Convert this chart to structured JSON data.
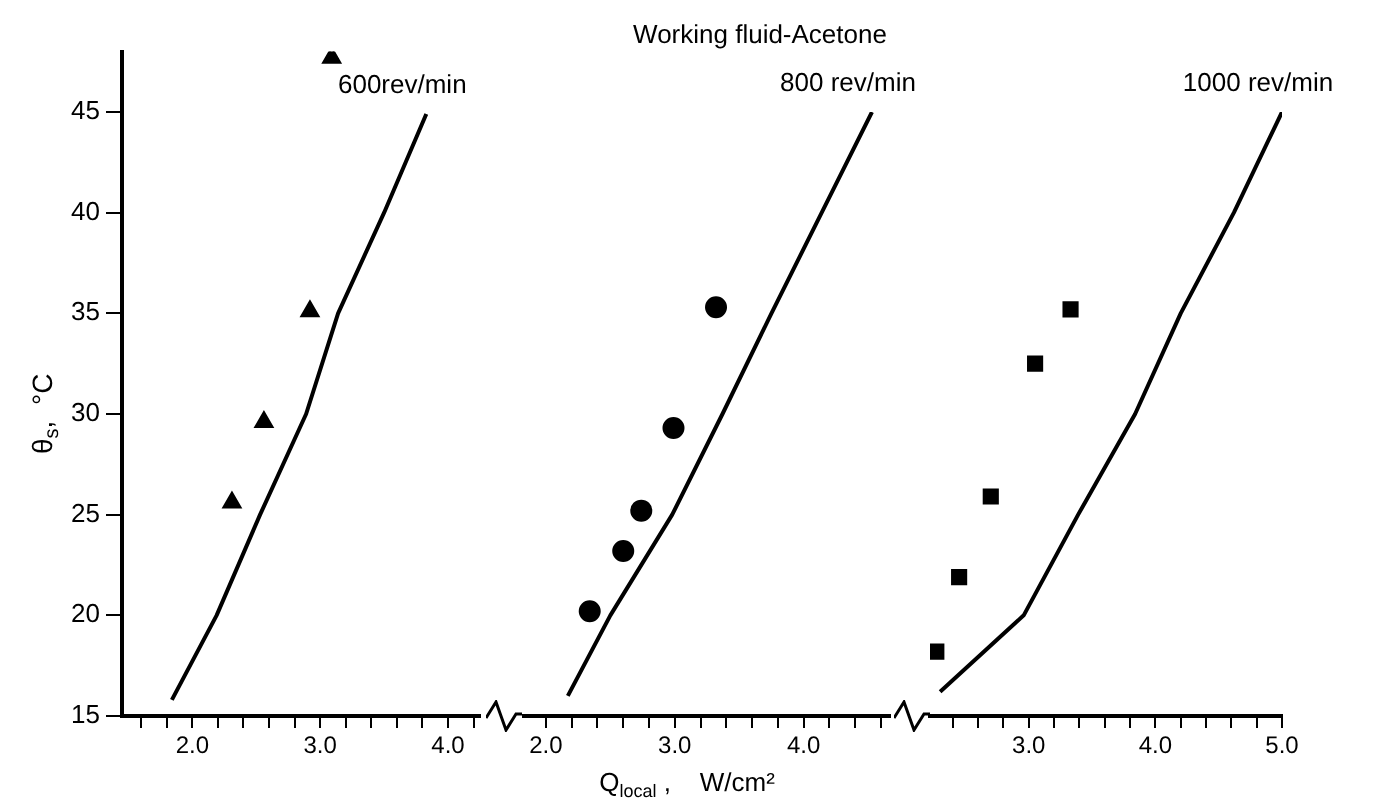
{
  "chart_data": [
    {
      "type": "scatter",
      "ylabel": "θ$_{s}$,  °C",
      "annotations": [
        {
          "text": "600rev/min",
          "x": 3.83,
          "y": 44.9
        }
      ],
      "xlim": [
        1.45,
        4.25
      ],
      "xticks": [
        {
          "value": 1.6,
          "label": null
        },
        {
          "value": 1.8,
          "label": null
        },
        {
          "value": 2,
          "label": "2.0"
        },
        {
          "value": 2.2,
          "label": null
        },
        {
          "value": 2.4,
          "label": null
        },
        {
          "value": 2.6,
          "label": null
        },
        {
          "value": 2.8,
          "label": null
        },
        {
          "value": 3,
          "label": "3.0"
        },
        {
          "value": 3.2,
          "label": null
        },
        {
          "value": 3.4,
          "label": null
        },
        {
          "value": 3.6,
          "label": null
        },
        {
          "value": 3.8,
          "label": null
        },
        {
          "value": 4,
          "label": "4.0"
        },
        {
          "value": 4.2,
          "label": null
        }
      ],
      "ylim": [
        15,
        48
      ],
      "yticks": [
        15,
        20,
        25,
        30,
        35,
        40,
        45
      ],
      "grid": false,
      "legend": false,
      "series": [
        {
          "type": "line",
          "color": "#000000",
          "marker": "none",
          "x": [
            1.84,
            2.19,
            2.53,
            2.89,
            3.14,
            3.5,
            3.83
          ],
          "values": [
            15.8,
            20,
            25,
            30,
            35,
            40,
            44.9
          ]
        },
        {
          "type": "scatter",
          "color": "#000000",
          "marker": "triangle",
          "x": [
            2.31,
            2.56,
            2.92,
            3.09
          ],
          "values": [
            25.6,
            29.6,
            35.1,
            47.7
          ]
        }
      ]
    },
    {
      "type": "scatter",
      "xlabel": "Q$_{local}$ ,    W/cm²",
      "annotations": [
        "Working fluid-Acetone",
        {
          "text": "800 rev/min",
          "x": 4.53,
          "y": 45
        }
      ],
      "xlim": [
        1.83,
        4.67
      ],
      "xticks": [
        {
          "value": 2,
          "label": "2.0"
        },
        {
          "value": 2.2,
          "label": null
        },
        {
          "value": 2.4,
          "label": null
        },
        {
          "value": 2.6,
          "label": null
        },
        {
          "value": 2.8,
          "label": null
        },
        {
          "value": 3,
          "label": "3.0"
        },
        {
          "value": 3.2,
          "label": null
        },
        {
          "value": 3.4,
          "label": null
        },
        {
          "value": 3.6,
          "label": null
        },
        {
          "value": 3.8,
          "label": null
        },
        {
          "value": 4,
          "label": "4.0"
        },
        {
          "value": 4.2,
          "label": null
        },
        {
          "value": 4.4,
          "label": null
        },
        {
          "value": 4.6,
          "label": null
        }
      ],
      "ylim": [
        15,
        45
      ],
      "yticks": [
        15,
        20,
        25,
        30,
        35,
        40,
        45
      ],
      "tick_labels": "x",
      "grid": false,
      "legend": false,
      "series": [
        {
          "type": "line",
          "color": "#000000",
          "marker": "none",
          "x": [
            2.17,
            2.5,
            2.98,
            3.37,
            3.75,
            4.14,
            4.53
          ],
          "values": [
            16,
            20,
            25,
            30,
            35,
            40,
            45
          ]
        },
        {
          "type": "scatter",
          "color": "#000000",
          "marker": "circle",
          "x": [
            2.34,
            2.6,
            2.74,
            2.99,
            3.32
          ],
          "values": [
            20.2,
            23.2,
            25.2,
            29.3,
            35.3
          ]
        }
      ]
    },
    {
      "type": "scatter",
      "annotations": [
        {
          "text": "1000 rev/min",
          "x": 5,
          "y": 45
        }
      ],
      "xlim": [
        2.22,
        5
      ],
      "xticks": [
        {
          "value": 2.4,
          "label": null
        },
        {
          "value": 2.6,
          "label": null
        },
        {
          "value": 2.8,
          "label": null
        },
        {
          "value": 3,
          "label": "3.0"
        },
        {
          "value": 3.2,
          "label": null
        },
        {
          "value": 3.4,
          "label": null
        },
        {
          "value": 3.6,
          "label": null
        },
        {
          "value": 3.8,
          "label": null
        },
        {
          "value": 4,
          "label": "4.0"
        },
        {
          "value": 4.2,
          "label": null
        },
        {
          "value": 4.4,
          "label": null
        },
        {
          "value": 4.6,
          "label": null
        },
        {
          "value": 4.8,
          "label": null
        },
        {
          "value": 5,
          "label": "5.0"
        }
      ],
      "ylim": [
        15,
        45
      ],
      "yticks": [
        15,
        20,
        25,
        30,
        35,
        40,
        45
      ],
      "tick_labels": "x",
      "grid": false,
      "legend": false,
      "series": [
        {
          "type": "line",
          "color": "#000000",
          "marker": "none",
          "x": [
            2.3,
            2.96,
            3.39,
            3.84,
            4.2,
            4.62,
            5
          ],
          "values": [
            16.2,
            20,
            25,
            30,
            35,
            40,
            45
          ]
        },
        {
          "type": "scatter",
          "color": "#000000",
          "marker": "square",
          "x": [
            2.27,
            2.45,
            2.7,
            3.05,
            3.33
          ],
          "values": [
            18.2,
            21.9,
            25.9,
            32.5,
            35.2
          ]
        }
      ]
    }
  ]
}
